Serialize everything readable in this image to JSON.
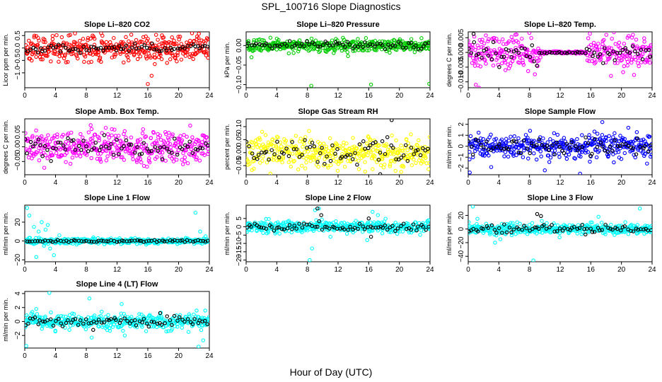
{
  "figure": {
    "title": "SPL_100716  Slope Diagnostics",
    "xlabel": "Hour of Day (UTC)"
  },
  "chart_data": [
    {
      "type": "scatter",
      "title": "Slope Li–820 CO2",
      "xlabel": "",
      "ylabel": "Licor ppm per min.",
      "xlim": [
        0,
        24
      ],
      "ylim": [
        -1.6,
        0.65
      ],
      "xticks": [
        0,
        4,
        8,
        12,
        16,
        20,
        24
      ],
      "yticks": [
        0.5,
        0.0,
        -0.5,
        -1.0
      ],
      "ytick_labels": [
        "0.5",
        "0.0",
        "−0.5",
        "−1.0"
      ],
      "series": [
        {
          "color": "#ff0000",
          "seed": 11,
          "spread": 0.27,
          "cap": 0.6,
          "outliers": [
            [
              16.0,
              -1.45
            ],
            [
              16.5,
              -1.12
            ],
            [
              16.9,
              -0.65
            ],
            [
              17.8,
              -0.45
            ],
            [
              18.5,
              -0.6
            ]
          ]
        },
        {
          "color": "#000000",
          "seed": 12,
          "spread": 0.09,
          "cap": 0.25,
          "sparse": true,
          "outliers": []
        }
      ]
    },
    {
      "type": "scatter",
      "title": "Slope Li–820 Pressure",
      "xlabel": "",
      "ylabel": "kPa per min.",
      "xlim": [
        0,
        24
      ],
      "ylim": [
        -0.108,
        0.035
      ],
      "xticks": [
        0,
        4,
        8,
        12,
        16,
        20,
        24
      ],
      "yticks": [
        0.0,
        -0.05,
        -0.1
      ],
      "ytick_labels": [
        "0.00",
        "−0.05",
        "−0.10"
      ],
      "series": [
        {
          "color": "#00cc00",
          "seed": 21,
          "spread": 0.008,
          "cap": 0.02,
          "outliers": [
            [
              0.7,
              -0.03
            ],
            [
              2.9,
              -0.012
            ],
            [
              8.5,
              -0.103
            ],
            [
              13.3,
              -0.027
            ],
            [
              16.3,
              -0.1
            ],
            [
              23.9,
              -0.098
            ],
            [
              6.8,
              -0.015
            ]
          ]
        },
        {
          "color": "#000000",
          "seed": 22,
          "spread": 0.005,
          "cap": 0.012,
          "sparse": true,
          "outliers": []
        }
      ]
    },
    {
      "type": "scatter",
      "title": "Slope Li–820 Temp.",
      "xlabel": "",
      "ylabel": "degrees C per min.",
      "xlim": [
        0,
        24
      ],
      "ylim": [
        -0.012,
        0.007
      ],
      "xticks": [
        0,
        4,
        8,
        12,
        16,
        20,
        24
      ],
      "yticks": [
        0.005,
        0.0,
        -0.005,
        -0.01
      ],
      "ytick_labels": [
        "0.005",
        "0.000",
        "−0.005",
        "−0.010"
      ],
      "series": [
        {
          "color": "#ff00ff",
          "seed": 31,
          "spread": 0.0028,
          "cap": 0.008,
          "quiet": [
            9.5,
            15.5
          ],
          "outliers": [
            [
              1.0,
              -0.011
            ],
            [
              1.4,
              -0.012
            ],
            [
              21.5,
              0.006
            ],
            [
              20.8,
              0.005
            ]
          ]
        },
        {
          "color": "#000000",
          "seed": 32,
          "spread": 0.0018,
          "cap": 0.005,
          "sparse": true,
          "quiet": [
            9.5,
            15.5
          ],
          "outliers": [
            [
              0.7,
              0.0063
            ]
          ]
        }
      ]
    },
    {
      "type": "scatter",
      "title": "Slope Amb. Box Temp.",
      "xlabel": "",
      "ylabel": "degrees C per min.",
      "xlim": [
        0,
        24
      ],
      "ylim": [
        -0.095,
        0.095
      ],
      "xticks": [
        0,
        4,
        8,
        12,
        16,
        20,
        24
      ],
      "yticks": [
        0.05,
        0.0,
        -0.05
      ],
      "ytick_labels": [
        "0.05",
        "0.00",
        "−0.05"
      ],
      "series": [
        {
          "color": "#ff00ff",
          "seed": 41,
          "spread": 0.028,
          "cap": 0.085,
          "outliers": []
        },
        {
          "color": "#000000",
          "seed": 42,
          "spread": 0.018,
          "cap": 0.06,
          "sparse": true,
          "outliers": []
        }
      ]
    },
    {
      "type": "scatter",
      "title": "Slope Gas Stream RH",
      "xlabel": "",
      "ylabel": "percent per min.",
      "xlim": [
        0,
        24
      ],
      "ylim": [
        -0.085,
        0.13
      ],
      "xticks": [
        0,
        4,
        8,
        12,
        16,
        20,
        24
      ],
      "yticks": [
        0.1,
        0.05,
        0.0,
        -0.05
      ],
      "ytick_labels": [
        "0.10",
        "0.05",
        "0.00",
        "−0.05"
      ],
      "series": [
        {
          "color": "#ffff00",
          "seed": 51,
          "spread": 0.03,
          "cap": 0.085,
          "outliers": []
        },
        {
          "color": "#000000",
          "seed": 52,
          "spread": 0.025,
          "cap": 0.06,
          "sparse": true,
          "outliers": [
            [
              19.0,
              0.125
            ],
            [
              17.5,
              -0.083
            ]
          ]
        }
      ]
    },
    {
      "type": "scatter",
      "title": "Slope Sample Flow",
      "xlabel": "",
      "ylabel": "ml/min per min.",
      "xlim": [
        0,
        24
      ],
      "ylim": [
        -2.6,
        2.5
      ],
      "xticks": [
        0,
        4,
        8,
        12,
        16,
        20,
        24
      ],
      "yticks": [
        2,
        1,
        0,
        -1,
        -2
      ],
      "ytick_labels": [
        "2",
        "1",
        "0",
        "−1",
        "−2"
      ],
      "series": [
        {
          "color": "#0000ff",
          "seed": 61,
          "spread": 0.55,
          "cap": 1.7,
          "outliers": [
            [
              10.0,
              -2.2
            ],
            [
              14.6,
              -2.5
            ],
            [
              17.5,
              2.2
            ],
            [
              3.0,
              -1.9
            ],
            [
              0.2,
              -2.4
            ]
          ]
        },
        {
          "color": "#000000",
          "seed": 62,
          "spread": 0.35,
          "cap": 1.0,
          "sparse": true,
          "outliers": []
        }
      ]
    },
    {
      "type": "scatter",
      "title": "Slope Line 1 Flow",
      "xlabel": "",
      "ylabel": "ml/min per min.",
      "xlim": [
        0,
        24
      ],
      "ylim": [
        -22,
        38
      ],
      "xticks": [
        0,
        4,
        8,
        12,
        16,
        20,
        24
      ],
      "yticks": [
        20,
        0,
        -20
      ],
      "ytick_labels": [
        "20",
        "0",
        "−20"
      ],
      "series": [
        {
          "color": "#00ffff",
          "seed": 71,
          "spread": 1.5,
          "cap": 5,
          "outliers": [
            [
              0.3,
              35
            ],
            [
              0.6,
              27
            ],
            [
              1.2,
              15
            ],
            [
              1.8,
              10
            ],
            [
              2.2,
              20
            ],
            [
              2.7,
              12
            ],
            [
              3.0,
              17
            ],
            [
              3.3,
              -8
            ],
            [
              3.8,
              -15
            ],
            [
              2.5,
              -5
            ],
            [
              1.5,
              -17
            ],
            [
              4.5,
              6
            ],
            [
              22.2,
              30
            ],
            [
              22.8,
              10
            ],
            [
              23.5,
              5
            ]
          ]
        },
        {
          "color": "#000000",
          "seed": 72,
          "spread": 0.5,
          "cap": 1.5,
          "sparse": true,
          "outliers": []
        }
      ]
    },
    {
      "type": "scatter",
      "title": "Slope Line 2 Flow",
      "xlabel": "",
      "ylabel": "ml/min per min.",
      "xlim": [
        0,
        24
      ],
      "ylim": [
        -21,
        13
      ],
      "xticks": [
        0,
        4,
        8,
        12,
        16,
        20,
        24
      ],
      "yticks": [
        5,
        0,
        -5,
        -10,
        -15,
        -20
      ],
      "ytick_labels": [
        "5",
        "0",
        "−5",
        "−10",
        "−15",
        "−20"
      ],
      "series": [
        {
          "color": "#00ffff",
          "seed": 81,
          "spread": 1.8,
          "cap": 5,
          "outliers": [
            [
              8.3,
              -20
            ],
            [
              9.0,
              10
            ],
            [
              9.5,
              11
            ],
            [
              8.6,
              -13
            ],
            [
              16.5,
              9
            ],
            [
              17.2,
              7
            ],
            [
              15.8,
              -8
            ],
            [
              11.0,
              -6
            ]
          ]
        },
        {
          "color": "#000000",
          "seed": 82,
          "spread": 1.2,
          "cap": 3.5,
          "sparse": true,
          "outliers": [
            [
              9.3,
              11
            ],
            [
              9.8,
              7
            ],
            [
              16.0,
              5
            ],
            [
              16.3,
              -6
            ]
          ]
        }
      ]
    },
    {
      "type": "scatter",
      "title": "Slope Line 3 Flow",
      "xlabel": "",
      "ylabel": "ml/min per min.",
      "xlim": [
        0,
        24
      ],
      "ylim": [
        -48,
        35
      ],
      "xticks": [
        0,
        4,
        8,
        12,
        16,
        20,
        24
      ],
      "yticks": [
        20,
        0,
        -20,
        -40
      ],
      "ytick_labels": [
        "20",
        "0",
        "−20",
        "−40"
      ],
      "series": [
        {
          "color": "#00ffff",
          "seed": 91,
          "spread": 4,
          "cap": 14,
          "outliers": [
            [
              0.6,
              33
            ],
            [
              1.2,
              15
            ],
            [
              3.5,
              -20
            ],
            [
              4.2,
              -15
            ],
            [
              8.5,
              -46
            ],
            [
              9.6,
              12
            ],
            [
              17.0,
              18
            ],
            [
              22.4,
              30
            ],
            [
              20.5,
              10
            ]
          ]
        },
        {
          "color": "#000000",
          "seed": 92,
          "spread": 3,
          "cap": 9,
          "sparse": true,
          "outliers": [
            [
              9.0,
              22
            ],
            [
              9.5,
              19
            ],
            [
              15.3,
              -8
            ]
          ]
        }
      ]
    },
    {
      "type": "scatter",
      "title": "Slope Line 4 (LT) Flow",
      "xlabel": "",
      "ylabel": "ml/min per min.",
      "xlim": [
        0,
        24
      ],
      "ylim": [
        -3.8,
        4.3
      ],
      "xticks": [
        0,
        4,
        8,
        12,
        16,
        20,
        24
      ],
      "yticks": [
        4,
        2,
        0,
        -2
      ],
      "ytick_labels": [
        "4",
        "2",
        "0",
        "−2"
      ],
      "series": [
        {
          "color": "#00ffff",
          "seed": 101,
          "spread": 0.55,
          "cap": 1.8,
          "outliers": [
            [
              0.2,
              -3.5
            ],
            [
              3.2,
              4.1
            ],
            [
              8.4,
              3.3
            ],
            [
              8.7,
              -2.3
            ],
            [
              12.6,
              2.5
            ],
            [
              21.3,
              -1.5
            ],
            [
              22.6,
              -3.6
            ],
            [
              23.2,
              -2.7
            ],
            [
              1.5,
              1.8
            ],
            [
              13.0,
              -2.0
            ]
          ]
        },
        {
          "color": "#000000",
          "seed": 102,
          "spread": 0.35,
          "cap": 1.0,
          "sparse": true,
          "outliers": [
            [
              8.9,
              -1.2
            ],
            [
              17.6,
              1.2
            ]
          ]
        }
      ]
    }
  ]
}
